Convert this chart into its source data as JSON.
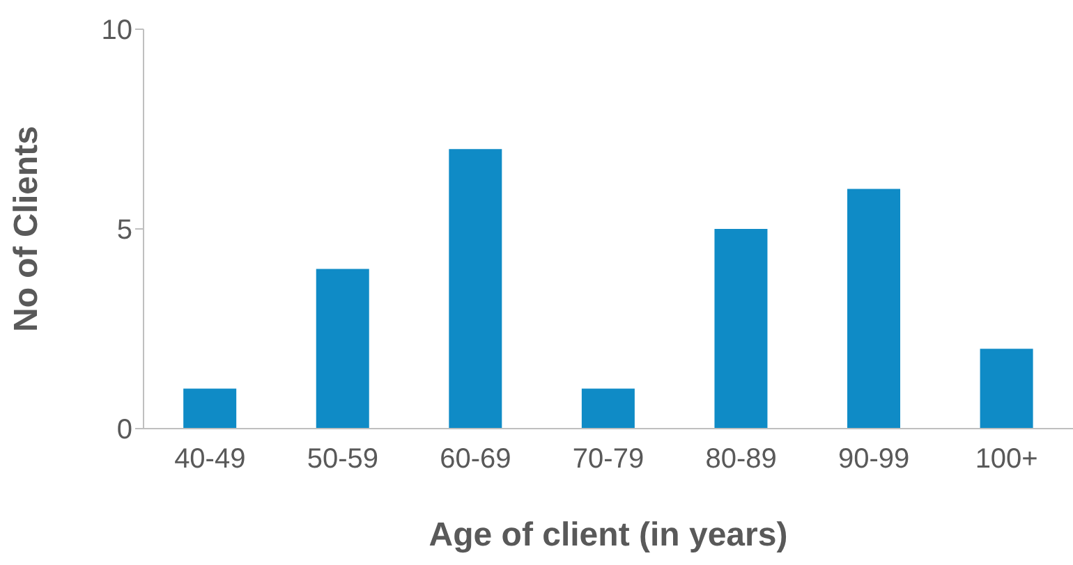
{
  "chart_data": {
    "type": "bar",
    "xlabel": "Age of client (in years)",
    "ylabel": "No of Clients",
    "categories": [
      "40-49",
      "50-59",
      "60-69",
      "70-79",
      "80-89",
      "90-99",
      "100+"
    ],
    "values": [
      1,
      4,
      7,
      1,
      5,
      6,
      2
    ],
    "color": "#0f8bc6",
    "ylim": [
      0,
      10
    ],
    "yticks": [
      0,
      5,
      10
    ],
    "grid": false,
    "legend": false
  }
}
